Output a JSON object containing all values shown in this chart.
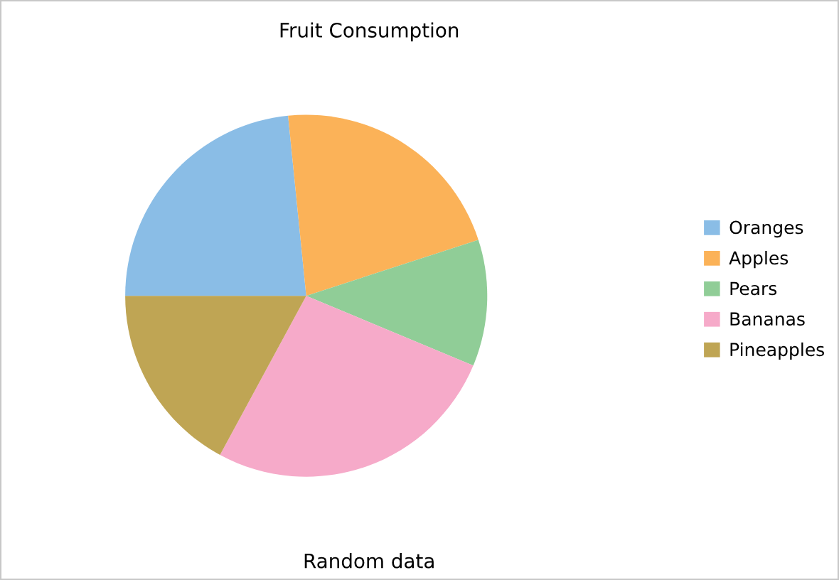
{
  "chart_data": {
    "type": "pie",
    "title": "Fruit Consumption",
    "categories": [
      "Oranges",
      "Apples",
      "Pears",
      "Bananas",
      "Pineapples"
    ],
    "values": [
      23.4,
      21.6,
      11.3,
      26.6,
      17.1
    ],
    "colors": [
      "#8abde6",
      "#fbb258",
      "#90cd97",
      "#f6aac9",
      "#bfa554"
    ],
    "legend": "right",
    "annotations": [
      "Random data"
    ]
  }
}
